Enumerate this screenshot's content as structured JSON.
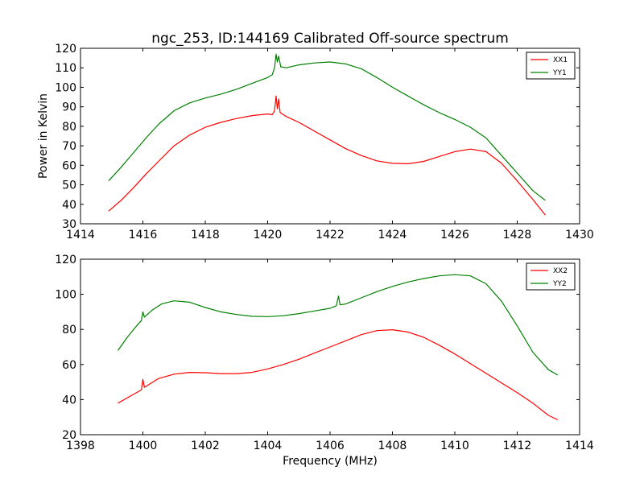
{
  "title": "ngc_253, ID:144169 Calibrated Off-source spectrum",
  "colors": {
    "xx": "#ff0000",
    "yy": "#008000",
    "axes": "#000000"
  },
  "chart_data": [
    {
      "type": "line",
      "title": "ngc_253, ID:144169 Calibrated Off-source spectrum",
      "xlabel": "",
      "ylabel": "Power in Kelvin",
      "xlim": [
        1414,
        1430
      ],
      "ylim": [
        30,
        120
      ],
      "xticks": [
        1414,
        1416,
        1418,
        1420,
        1422,
        1424,
        1426,
        1428,
        1430
      ],
      "yticks": [
        30,
        40,
        50,
        60,
        70,
        80,
        90,
        100,
        110,
        120
      ],
      "legend": "top-right",
      "grid": false,
      "series": [
        {
          "name": "XX1",
          "color": "#ff0000",
          "points": [
            [
              1414.9,
              36.5
            ],
            [
              1415.3,
              42
            ],
            [
              1415.7,
              48.5
            ],
            [
              1416.1,
              55.5
            ],
            [
              1416.5,
              62
            ],
            [
              1417.0,
              70
            ],
            [
              1417.5,
              75.5
            ],
            [
              1418.0,
              79.5
            ],
            [
              1418.5,
              82
            ],
            [
              1419.0,
              84
            ],
            [
              1419.5,
              85.5
            ],
            [
              1420.0,
              86.3
            ],
            [
              1420.15,
              86
            ],
            [
              1420.22,
              88
            ],
            [
              1420.27,
              95.5
            ],
            [
              1420.31,
              89
            ],
            [
              1420.35,
              94
            ],
            [
              1420.4,
              87
            ],
            [
              1420.6,
              85
            ],
            [
              1421.0,
              82
            ],
            [
              1421.5,
              77.5
            ],
            [
              1422.0,
              73
            ],
            [
              1422.5,
              68.5
            ],
            [
              1423.0,
              65
            ],
            [
              1423.5,
              62.3
            ],
            [
              1424.0,
              61
            ],
            [
              1424.5,
              60.8
            ],
            [
              1425.0,
              62
            ],
            [
              1425.5,
              64.5
            ],
            [
              1426.0,
              67
            ],
            [
              1426.5,
              68.3
            ],
            [
              1427.0,
              67
            ],
            [
              1427.5,
              61
            ],
            [
              1428.0,
              52
            ],
            [
              1428.5,
              42.5
            ],
            [
              1428.9,
              34.5
            ]
          ]
        },
        {
          "name": "YY1",
          "color": "#008000",
          "points": [
            [
              1414.9,
              52
            ],
            [
              1415.3,
              59
            ],
            [
              1415.7,
              66.5
            ],
            [
              1416.1,
              74
            ],
            [
              1416.5,
              81
            ],
            [
              1417.0,
              88
            ],
            [
              1417.5,
              92
            ],
            [
              1418.0,
              94.5
            ],
            [
              1418.5,
              96.5
            ],
            [
              1419.0,
              99
            ],
            [
              1419.5,
              102
            ],
            [
              1420.0,
              105
            ],
            [
              1420.15,
              106.5
            ],
            [
              1420.22,
              110
            ],
            [
              1420.27,
              117
            ],
            [
              1420.31,
              113
            ],
            [
              1420.35,
              116
            ],
            [
              1420.42,
              110.5
            ],
            [
              1420.6,
              110
            ],
            [
              1421.0,
              111.5
            ],
            [
              1421.5,
              112.5
            ],
            [
              1422.0,
              113
            ],
            [
              1422.5,
              112
            ],
            [
              1423.0,
              109.5
            ],
            [
              1423.5,
              105
            ],
            [
              1424.0,
              100
            ],
            [
              1424.5,
              95.5
            ],
            [
              1425.0,
              91
            ],
            [
              1425.5,
              87
            ],
            [
              1426.0,
              83.5
            ],
            [
              1426.5,
              79.5
            ],
            [
              1427.0,
              74
            ],
            [
              1427.5,
              65
            ],
            [
              1428.0,
              56
            ],
            [
              1428.5,
              47
            ],
            [
              1428.9,
              42
            ]
          ]
        }
      ]
    },
    {
      "type": "line",
      "title": "",
      "xlabel": "Frequency (MHz)",
      "ylabel": "",
      "xlim": [
        1398,
        1414
      ],
      "ylim": [
        20,
        120
      ],
      "xticks": [
        1398,
        1400,
        1402,
        1404,
        1406,
        1408,
        1410,
        1412,
        1414
      ],
      "yticks": [
        20,
        40,
        60,
        80,
        100,
        120
      ],
      "legend": "top-right",
      "grid": false,
      "series": [
        {
          "name": "XX2",
          "color": "#ff0000",
          "points": [
            [
              1399.2,
              38
            ],
            [
              1399.6,
              42
            ],
            [
              1399.95,
              45.5
            ],
            [
              1400.0,
              51.5
            ],
            [
              1400.05,
              47
            ],
            [
              1400.5,
              52
            ],
            [
              1401.0,
              54.5
            ],
            [
              1401.5,
              55.5
            ],
            [
              1402.0,
              55.3
            ],
            [
              1402.5,
              54.8
            ],
            [
              1403.0,
              54.8
            ],
            [
              1403.5,
              55.5
            ],
            [
              1404.0,
              57.5
            ],
            [
              1404.5,
              60
            ],
            [
              1405.0,
              63
            ],
            [
              1405.5,
              66.5
            ],
            [
              1406.0,
              70
            ],
            [
              1406.5,
              73.5
            ],
            [
              1407.0,
              77
            ],
            [
              1407.5,
              79.3
            ],
            [
              1408.0,
              79.8
            ],
            [
              1408.5,
              78.5
            ],
            [
              1409.0,
              75.5
            ],
            [
              1409.5,
              71
            ],
            [
              1410.0,
              66
            ],
            [
              1410.5,
              60.5
            ],
            [
              1411.0,
              55
            ],
            [
              1411.5,
              49.5
            ],
            [
              1412.0,
              44
            ],
            [
              1412.5,
              38
            ],
            [
              1413.0,
              31
            ],
            [
              1413.3,
              28.5
            ]
          ]
        },
        {
          "name": "YY2",
          "color": "#008000",
          "points": [
            [
              1399.2,
              68
            ],
            [
              1399.5,
              75.5
            ],
            [
              1399.8,
              82
            ],
            [
              1399.95,
              85
            ],
            [
              1400.0,
              90
            ],
            [
              1400.05,
              87
            ],
            [
              1400.3,
              91
            ],
            [
              1400.6,
              94.5
            ],
            [
              1401.0,
              96.3
            ],
            [
              1401.5,
              95.5
            ],
            [
              1402.0,
              92.5
            ],
            [
              1402.5,
              90
            ],
            [
              1403.0,
              88.5
            ],
            [
              1403.5,
              87.5
            ],
            [
              1404.0,
              87.3
            ],
            [
              1404.5,
              87.8
            ],
            [
              1405.0,
              89
            ],
            [
              1405.5,
              90.5
            ],
            [
              1406.0,
              92
            ],
            [
              1406.2,
              93.5
            ],
            [
              1406.27,
              99
            ],
            [
              1406.32,
              94
            ],
            [
              1406.5,
              94.5
            ],
            [
              1407.0,
              98
            ],
            [
              1407.5,
              101.5
            ],
            [
              1408.0,
              104.5
            ],
            [
              1408.5,
              107
            ],
            [
              1409.0,
              109
            ],
            [
              1409.5,
              110.5
            ],
            [
              1410.0,
              111.2
            ],
            [
              1410.5,
              110.5
            ],
            [
              1411.0,
              106
            ],
            [
              1411.5,
              96
            ],
            [
              1412.0,
              82
            ],
            [
              1412.5,
              67
            ],
            [
              1413.0,
              57
            ],
            [
              1413.3,
              54
            ]
          ]
        }
      ]
    }
  ]
}
